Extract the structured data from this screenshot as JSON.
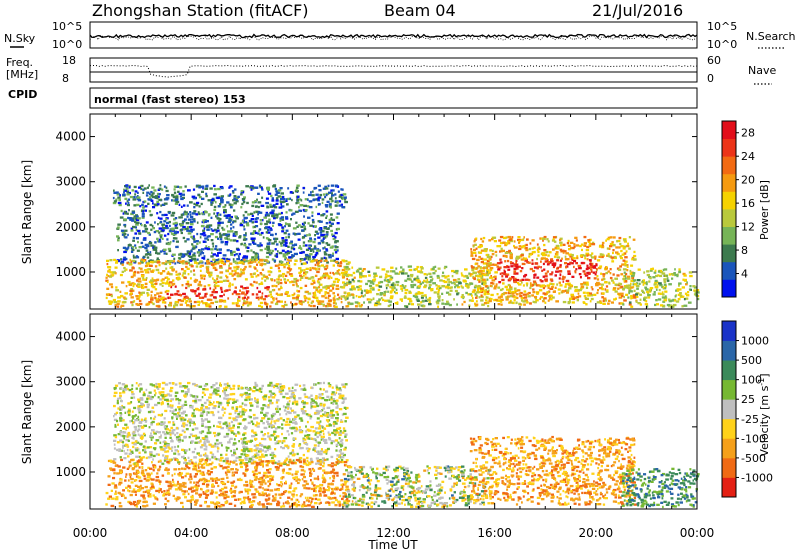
{
  "header": {
    "station": "Zhongshan Station (fitACF)",
    "beam": "Beam 04",
    "date": "21/Jul/2016"
  },
  "summary": {
    "nsky_label": "N.Sky",
    "nsky_ticks": [
      "10^5",
      "10^0"
    ],
    "nsearch_label": "N.Search",
    "nsearch_ticks": [
      "10^5",
      "10^0"
    ],
    "freq_label": "Freq.",
    "freq_unit": "[MHz]",
    "freq_ticks": [
      "18",
      "8"
    ],
    "nave_label": "Nave",
    "nave_ticks": [
      "60",
      "0"
    ],
    "cpid_label": "CPID",
    "cpid_text": "normal (fast stereo) 153"
  },
  "chart_data": [
    {
      "type": "heatmap",
      "title": "",
      "ylabel": "Slant Range [km]",
      "xlabel": "",
      "ylim": [
        180,
        4500
      ],
      "yticks": [
        1000,
        2000,
        3000,
        4000
      ],
      "xlim": [
        0,
        24
      ],
      "colorbar": {
        "label": "Power [dB]",
        "ticks": [
          "4",
          "8",
          "12",
          "16",
          "20",
          "24",
          "28"
        ],
        "range": [
          0,
          30
        ],
        "colors": [
          "#0011ee",
          "#1a55bb",
          "#3c7a4e",
          "#76b457",
          "#b9c93c",
          "#f5d200",
          "#f59a10",
          "#f26a12",
          "#ec3418",
          "#e20e1a"
        ]
      },
      "echo_regions": [
        {
          "t": [
            0.9,
            10.1
          ],
          "r": [
            2450,
            2950
          ],
          "level": "low"
        },
        {
          "t": [
            1.0,
            9.8
          ],
          "r": [
            1200,
            2400
          ],
          "level": "low"
        },
        {
          "t": [
            0.6,
            10.2
          ],
          "r": [
            250,
            1300
          ],
          "level": "high",
          "peak_t": [
            3.0,
            7.0
          ],
          "peak_r": [
            450,
            700
          ]
        },
        {
          "t": [
            10.0,
            15.8
          ],
          "r": [
            250,
            1150
          ],
          "level": "medium"
        },
        {
          "t": [
            15.0,
            21.5
          ],
          "r": [
            300,
            1800
          ],
          "level": "high",
          "peak_t": [
            16.0,
            20.0
          ],
          "peak_r": [
            800,
            1300
          ]
        },
        {
          "t": [
            21.0,
            24.0
          ],
          "r": [
            250,
            1100
          ],
          "level": "medium"
        }
      ]
    },
    {
      "type": "heatmap",
      "title": "",
      "ylabel": "Slant Range [km]",
      "xlabel": "Time UT",
      "ylim": [
        180,
        4500
      ],
      "yticks": [
        1000,
        2000,
        3000,
        4000
      ],
      "xlim": [
        0,
        24
      ],
      "xticks": [
        "00:00",
        "04:00",
        "08:00",
        "12:00",
        "16:00",
        "20:00",
        "00:00"
      ],
      "colorbar": {
        "label": "Velocity [m s",
        "label_sup": "-1",
        "label_end": "]",
        "ticks": [
          "1000",
          "500",
          "100",
          "25",
          "-25",
          "-100",
          "-500",
          "-1000"
        ],
        "colors": [
          "#1a33c8",
          "#2a66a8",
          "#3b8a5a",
          "#76b832",
          "#bfbfbf",
          "#ffd21a",
          "#f5a01a",
          "#f06a14",
          "#e42014"
        ]
      },
      "echo_regions": [
        {
          "t": [
            0.9,
            10.1
          ],
          "r": [
            1200,
            3000
          ],
          "level": "near-zero"
        },
        {
          "t": [
            0.6,
            10.2
          ],
          "r": [
            250,
            1300
          ],
          "level": "negative"
        },
        {
          "t": [
            10.0,
            15.8
          ],
          "r": [
            250,
            1150
          ],
          "level": "mixed"
        },
        {
          "t": [
            15.0,
            21.5
          ],
          "r": [
            300,
            1800
          ],
          "level": "negative"
        },
        {
          "t": [
            21.0,
            24.0
          ],
          "r": [
            250,
            1100
          ],
          "level": "positive"
        }
      ]
    }
  ]
}
